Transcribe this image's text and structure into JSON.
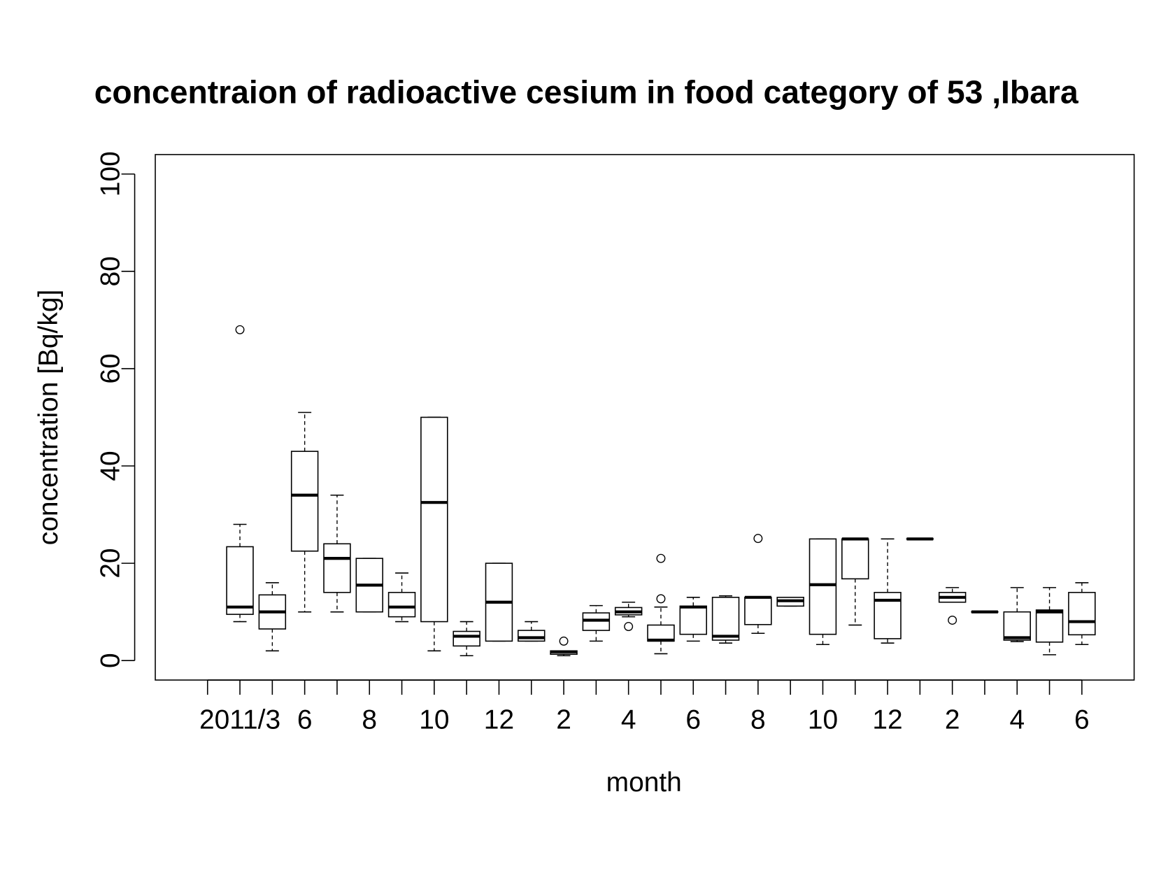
{
  "chart_data": {
    "type": "boxplot",
    "title": "concentraion of radioactive cesium in food category of  53 ,Ibara",
    "xlabel": "month",
    "ylabel": "concentration [Bq/kg]",
    "categories": [
      null,
      "2011/3",
      null,
      "6",
      null,
      "8",
      null,
      "10",
      null,
      "12",
      null,
      "2",
      null,
      "4",
      null,
      "6",
      null,
      "8",
      null,
      "10",
      null,
      "12",
      null,
      "2",
      null,
      "4",
      null,
      "6"
    ],
    "min": [
      null,
      8,
      2,
      10,
      10,
      10,
      8,
      2,
      1,
      4,
      4,
      1,
      4,
      9,
      1.4,
      4,
      3.6,
      5.6,
      11.2,
      3.3,
      7.3,
      3.6,
      25,
      12,
      10,
      3.9,
      1.2,
      3.3
    ],
    "q1": [
      null,
      9.5,
      6.5,
      22.5,
      14,
      10,
      9,
      8,
      3,
      4,
      4,
      1.3,
      6.2,
      9.4,
      4,
      5.4,
      4.2,
      7.4,
      11.2,
      5.4,
      16.8,
      4.5,
      25,
      12,
      10,
      4.2,
      3.8,
      5.3
    ],
    "median": [
      null,
      11,
      10,
      34,
      21,
      15.5,
      11,
      32.5,
      5,
      12,
      4.7,
      1.8,
      8.3,
      10,
      4.2,
      11,
      5,
      13,
      12.3,
      15.6,
      25,
      12.4,
      25,
      13,
      10,
      4.7,
      10,
      8
    ],
    "q3": [
      null,
      23.4,
      13.5,
      43,
      24,
      21,
      14,
      50,
      6,
      20,
      6.2,
      2,
      9.8,
      10.9,
      7.3,
      11.2,
      13,
      13,
      13,
      25,
      25,
      14,
      25,
      14,
      10,
      10,
      10.4,
      14
    ],
    "max": [
      null,
      28,
      16,
      51,
      34,
      21,
      18,
      50,
      8,
      20,
      8,
      2,
      11.3,
      12,
      11,
      13,
      13.3,
      13,
      13,
      25,
      25,
      25,
      25,
      15,
      10,
      15,
      15,
      16
    ],
    "outliers": [
      [],
      [
        68
      ],
      [],
      [],
      [],
      [],
      [],
      [],
      [],
      [],
      [],
      [
        4
      ],
      [],
      [
        7
      ],
      [
        21,
        12.7
      ],
      [],
      [],
      [
        25.1
      ],
      [],
      [],
      [],
      [],
      [],
      [
        8.3
      ],
      [],
      [],
      [],
      []
    ],
    "ylim": [
      -4,
      104
    ],
    "yticks": [
      0,
      20,
      40,
      60,
      80,
      100
    ],
    "color": "#000000"
  }
}
